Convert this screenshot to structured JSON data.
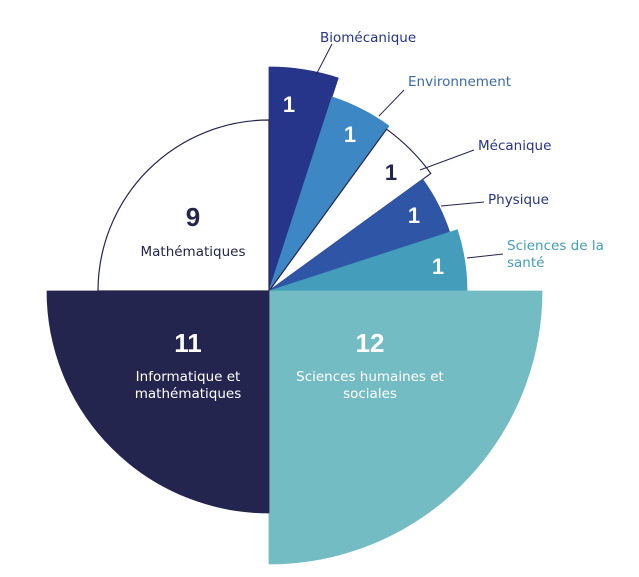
{
  "chart_data": {
    "type": "pie",
    "variant": "polar-area (radius proportional to value)",
    "categories": [
      "Biomécanique",
      "Environnement",
      "Mécanique",
      "Physique",
      "Sciences de la santé",
      "Sciences humaines et sociales",
      "Informatique et mathématiques",
      "Mathématiques"
    ],
    "values": [
      1,
      1,
      1,
      1,
      1,
      12,
      11,
      9
    ],
    "value_labels": [
      "1",
      "1",
      "1",
      "1",
      "1",
      "12",
      "11",
      "9"
    ],
    "label_lines": [
      [
        "Biomécanique"
      ],
      [
        "Environnement"
      ],
      [
        "Mécanique"
      ],
      [
        "Physique"
      ],
      [
        "Sciences de la",
        "santé"
      ],
      [
        "Sciences humaines et",
        "sociales"
      ],
      [
        "Informatique et",
        "mathématiques"
      ],
      [
        "Mathématiques"
      ]
    ],
    "colors": [
      "#26348a",
      "#3c87c4",
      "#ffffff",
      "#2f55a6",
      "#449dba",
      "#74bcc3",
      "#24254e",
      "#ffffff"
    ],
    "outline_color": "#24254e",
    "external_label_color": "#26348a",
    "title": "",
    "legend": "none"
  }
}
